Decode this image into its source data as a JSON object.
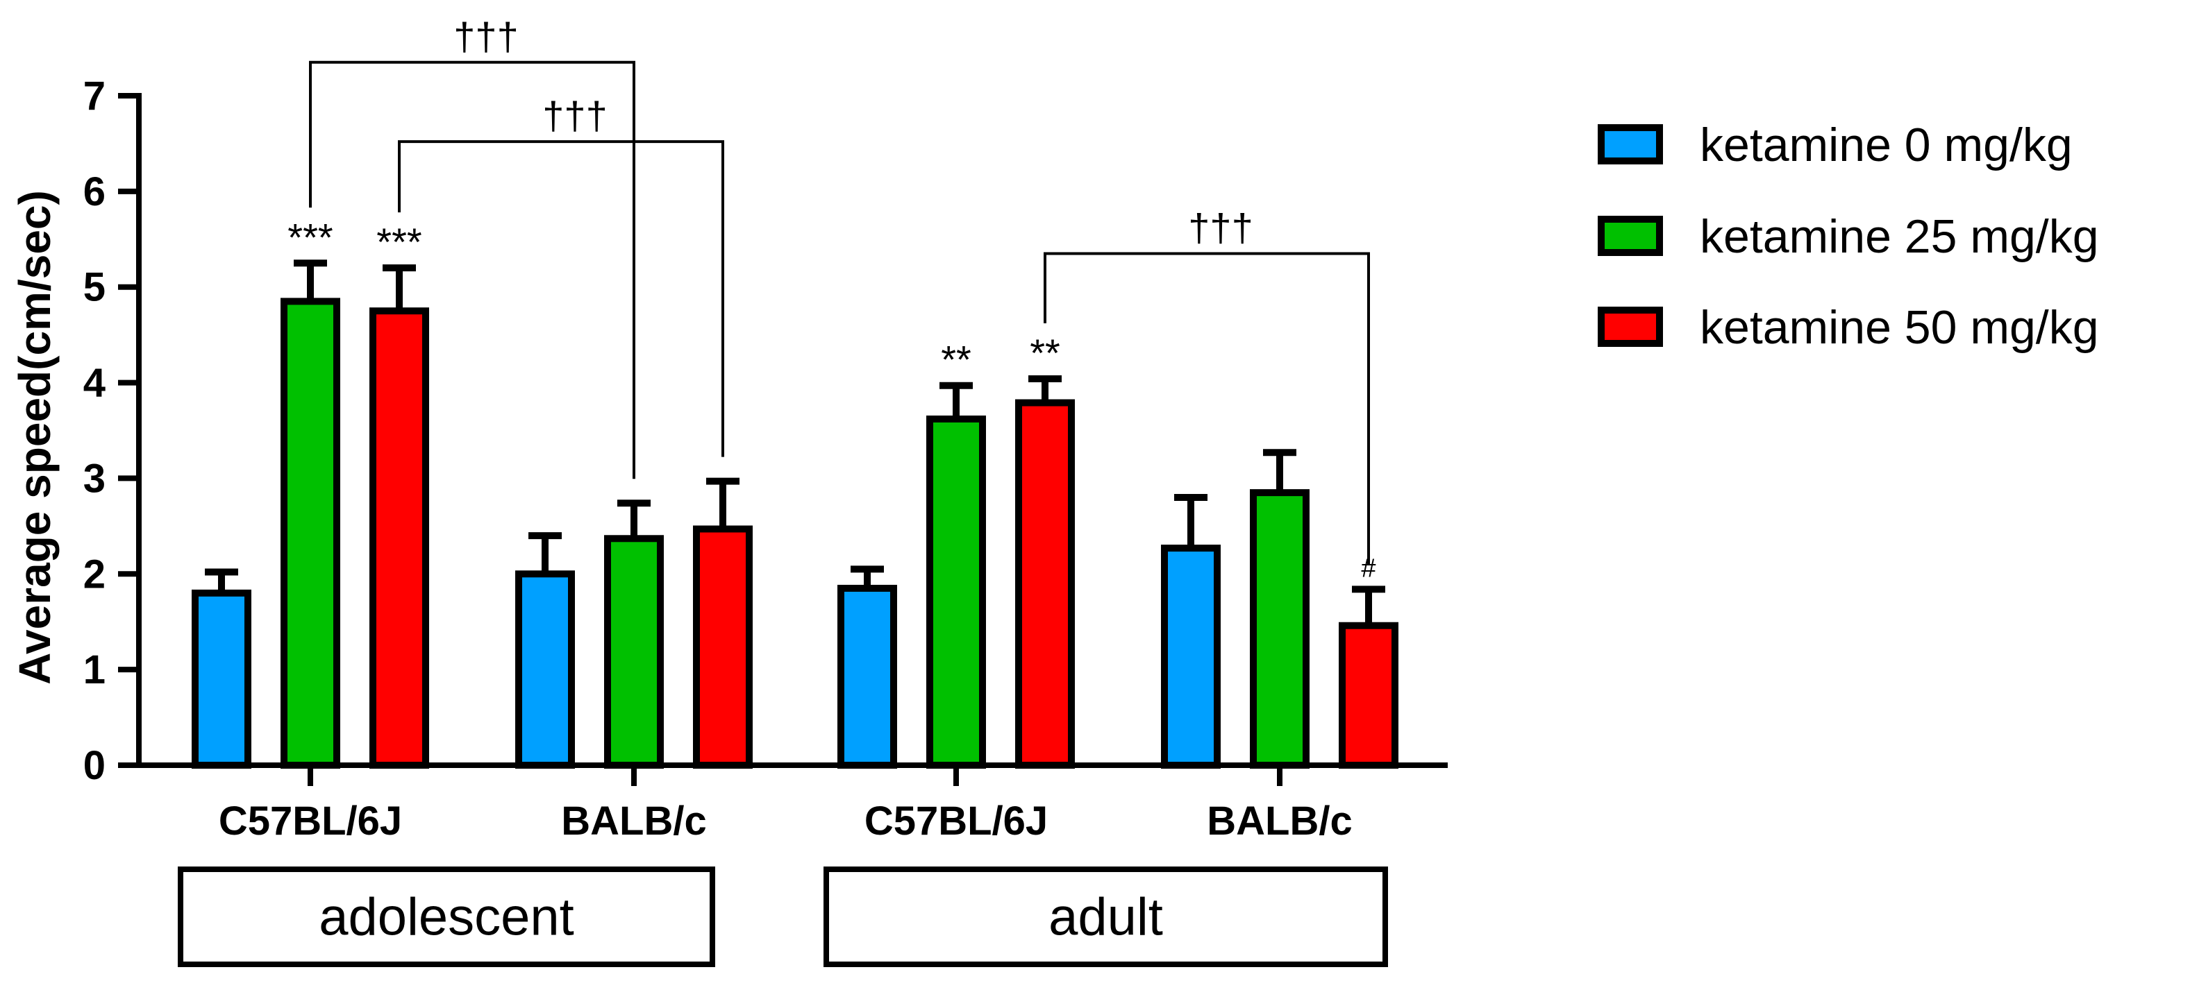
{
  "chart_data": {
    "type": "bar",
    "title": "",
    "xlabel": "",
    "ylabel": "Average speed(cm/sec)",
    "ylim": [
      0,
      7
    ],
    "yticks": [
      "0",
      "1",
      "2",
      "3",
      "4",
      "5",
      "6",
      "7"
    ],
    "categories": [
      "C57BL/6J",
      "BALB/c",
      "C57BL/6J",
      "BALB/c"
    ],
    "groups": [
      {
        "label": "adolescent",
        "categories": [
          0,
          1
        ]
      },
      {
        "label": "adult",
        "categories": [
          2,
          3
        ]
      }
    ],
    "series": [
      {
        "name": "ketamine 0 mg/kg",
        "color": "#00a0ff",
        "values": [
          1.8,
          2.0,
          1.85,
          2.27
        ],
        "errors": [
          0.22,
          0.4,
          0.2,
          0.53
        ]
      },
      {
        "name": "ketamine 25 mg/kg",
        "color": "#00c000",
        "values": [
          4.85,
          2.37,
          3.62,
          2.85
        ],
        "errors": [
          0.4,
          0.37,
          0.35,
          0.42
        ]
      },
      {
        "name": "ketamine 50 mg/kg",
        "color": "#ff0000",
        "values": [
          4.75,
          2.47,
          3.79,
          1.46
        ],
        "errors": [
          0.45,
          0.5,
          0.25,
          0.38
        ]
      }
    ],
    "bar_annotations": [
      {
        "category": 0,
        "series": 1,
        "text": "***"
      },
      {
        "category": 0,
        "series": 2,
        "text": "***"
      },
      {
        "category": 2,
        "series": 1,
        "text": "**"
      },
      {
        "category": 2,
        "series": 2,
        "text": "**"
      },
      {
        "category": 3,
        "series": 2,
        "text": "#"
      }
    ],
    "comparisons": [
      {
        "from": {
          "category": 0,
          "series": 1
        },
        "to": {
          "category": 1,
          "series": 1
        },
        "text": "†††",
        "level": 7.35
      },
      {
        "from": {
          "category": 0,
          "series": 2
        },
        "to": {
          "category": 1,
          "series": 2
        },
        "text": "†††",
        "level": 6.52
      },
      {
        "from": {
          "category": 2,
          "series": 2
        },
        "to": {
          "category": 3,
          "series": 2
        },
        "text": "†††",
        "level": 5.35
      }
    ],
    "legend_position": "top-right",
    "grid": false
  }
}
